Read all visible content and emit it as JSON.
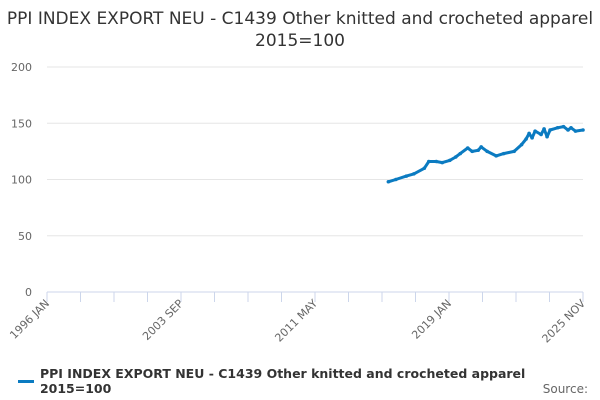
{
  "chart_data": {
    "type": "line",
    "title": "PPI INDEX EXPORT NEU - C1439 Other knitted and crocheted apparel 2015=100",
    "xlabel": "",
    "ylabel": "",
    "x_ticks": [
      "1996 JAN",
      "2003 SEP",
      "2011 MAY",
      "2019 JAN",
      "2025 NOV"
    ],
    "xlim": [
      "1996-01",
      "2025-11"
    ],
    "y_ticks": [
      0,
      50,
      100,
      150,
      200
    ],
    "ylim": [
      0,
      200
    ],
    "grid": true,
    "legend_position": "bottom",
    "series": [
      {
        "name": "PPI INDEX EXPORT NEU - C1439 Other knitted and crocheted apparel 2015=100",
        "color": "#0b7bc1",
        "points": [
          [
            "2015-01",
            98
          ],
          [
            "2015-06",
            100
          ],
          [
            "2016-01",
            103
          ],
          [
            "2016-06",
            105
          ],
          [
            "2017-01",
            110
          ],
          [
            "2017-04",
            116
          ],
          [
            "2017-09",
            116
          ],
          [
            "2018-01",
            115
          ],
          [
            "2018-06",
            117
          ],
          [
            "2018-10",
            120
          ],
          [
            "2019-01",
            123
          ],
          [
            "2019-06",
            128
          ],
          [
            "2019-09",
            125
          ],
          [
            "2020-01",
            126
          ],
          [
            "2020-03",
            129
          ],
          [
            "2020-07",
            125
          ],
          [
            "2021-01",
            121
          ],
          [
            "2021-06",
            123
          ],
          [
            "2022-01",
            125
          ],
          [
            "2022-06",
            131
          ],
          [
            "2022-09",
            136
          ],
          [
            "2022-11",
            141
          ],
          [
            "2023-01",
            137
          ],
          [
            "2023-03",
            143
          ],
          [
            "2023-07",
            140
          ],
          [
            "2023-09",
            145
          ],
          [
            "2023-11",
            138
          ],
          [
            "2024-01",
            144
          ],
          [
            "2024-06",
            146
          ],
          [
            "2024-10",
            147
          ],
          [
            "2025-01",
            144
          ],
          [
            "2025-03",
            146
          ],
          [
            "2025-06",
            143
          ],
          [
            "2025-11",
            144
          ]
        ]
      }
    ]
  },
  "source_label": "Source:"
}
